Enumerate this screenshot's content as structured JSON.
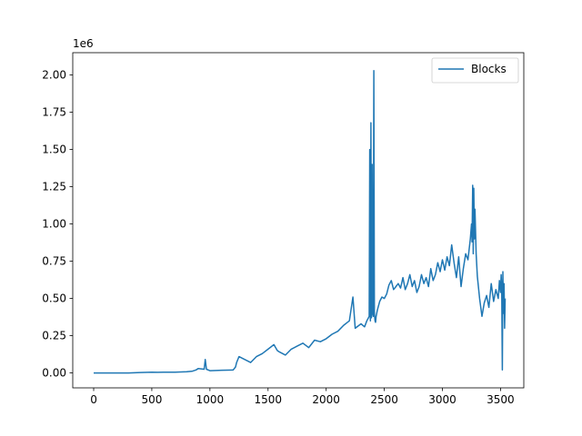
{
  "chart_data": {
    "type": "line",
    "title": "",
    "xlabel": "",
    "ylabel": "",
    "offset_text": "1e6",
    "xlim": [
      -180,
      3700
    ],
    "ylim": [
      -100000,
      2150000
    ],
    "xticks": [
      0,
      500,
      1000,
      1500,
      2000,
      2500,
      3000,
      3500
    ],
    "xtick_labels": [
      "0",
      "500",
      "1000",
      "1500",
      "2000",
      "2500",
      "3000",
      "3500"
    ],
    "yticks": [
      0,
      250000,
      500000,
      750000,
      1000000,
      1250000,
      1500000,
      1750000,
      2000000
    ],
    "ytick_labels": [
      "0.00",
      "0.25",
      "0.50",
      "0.75",
      "1.00",
      "1.25",
      "1.50",
      "1.75",
      "2.00"
    ],
    "grid": false,
    "legend": {
      "placement": "upper-right",
      "entries": [
        "Blocks"
      ]
    },
    "series": [
      {
        "name": "Blocks",
        "color": "#1f77b4",
        "x": [
          0,
          100,
          200,
          300,
          400,
          500,
          550,
          600,
          700,
          800,
          850,
          880,
          900,
          950,
          960,
          970,
          1000,
          1100,
          1200,
          1220,
          1230,
          1250,
          1300,
          1350,
          1400,
          1450,
          1500,
          1550,
          1580,
          1600,
          1650,
          1700,
          1750,
          1800,
          1850,
          1900,
          1950,
          2000,
          2050,
          2100,
          2150,
          2200,
          2230,
          2250,
          2300,
          2330,
          2350,
          2370,
          2375,
          2380,
          2385,
          2390,
          2395,
          2400,
          2405,
          2410,
          2415,
          2420,
          2425,
          2430,
          2440,
          2460,
          2480,
          2500,
          2520,
          2540,
          2560,
          2580,
          2600,
          2620,
          2640,
          2660,
          2680,
          2700,
          2720,
          2740,
          2760,
          2780,
          2800,
          2820,
          2840,
          2860,
          2880,
          2900,
          2920,
          2940,
          2960,
          2980,
          3000,
          3020,
          3040,
          3060,
          3080,
          3100,
          3120,
          3140,
          3160,
          3180,
          3200,
          3220,
          3240,
          3250,
          3255,
          3260,
          3265,
          3270,
          3275,
          3280,
          3290,
          3300,
          3320,
          3340,
          3360,
          3380,
          3400,
          3420,
          3440,
          3460,
          3480,
          3490,
          3500,
          3505,
          3510,
          3515,
          3520,
          3525,
          3530,
          3535,
          3540
        ],
        "values": [
          0,
          0,
          0,
          0,
          3000,
          5000,
          4000,
          5000,
          5000,
          8000,
          12000,
          20000,
          30000,
          25000,
          90000,
          25000,
          15000,
          18000,
          20000,
          40000,
          70000,
          110000,
          90000,
          70000,
          110000,
          130000,
          160000,
          190000,
          150000,
          140000,
          120000,
          160000,
          180000,
          200000,
          170000,
          220000,
          210000,
          230000,
          260000,
          280000,
          320000,
          350000,
          510000,
          300000,
          330000,
          310000,
          350000,
          380000,
          1500000,
          350000,
          1680000,
          370000,
          1400000,
          400000,
          380000,
          2030000,
          400000,
          350000,
          340000,
          380000,
          420000,
          480000,
          510000,
          500000,
          530000,
          590000,
          620000,
          560000,
          580000,
          600000,
          570000,
          640000,
          560000,
          600000,
          660000,
          580000,
          620000,
          540000,
          580000,
          660000,
          600000,
          640000,
          580000,
          700000,
          620000,
          660000,
          740000,
          680000,
          760000,
          690000,
          780000,
          720000,
          860000,
          740000,
          640000,
          780000,
          580000,
          700000,
          800000,
          760000,
          900000,
          1000000,
          880000,
          1260000,
          800000,
          1240000,
          900000,
          1100000,
          800000,
          650000,
          500000,
          380000,
          470000,
          520000,
          440000,
          600000,
          480000,
          560000,
          500000,
          620000,
          540000,
          660000,
          580000,
          20000,
          680000,
          400000,
          600000,
          300000,
          500000
        ]
      }
    ]
  }
}
